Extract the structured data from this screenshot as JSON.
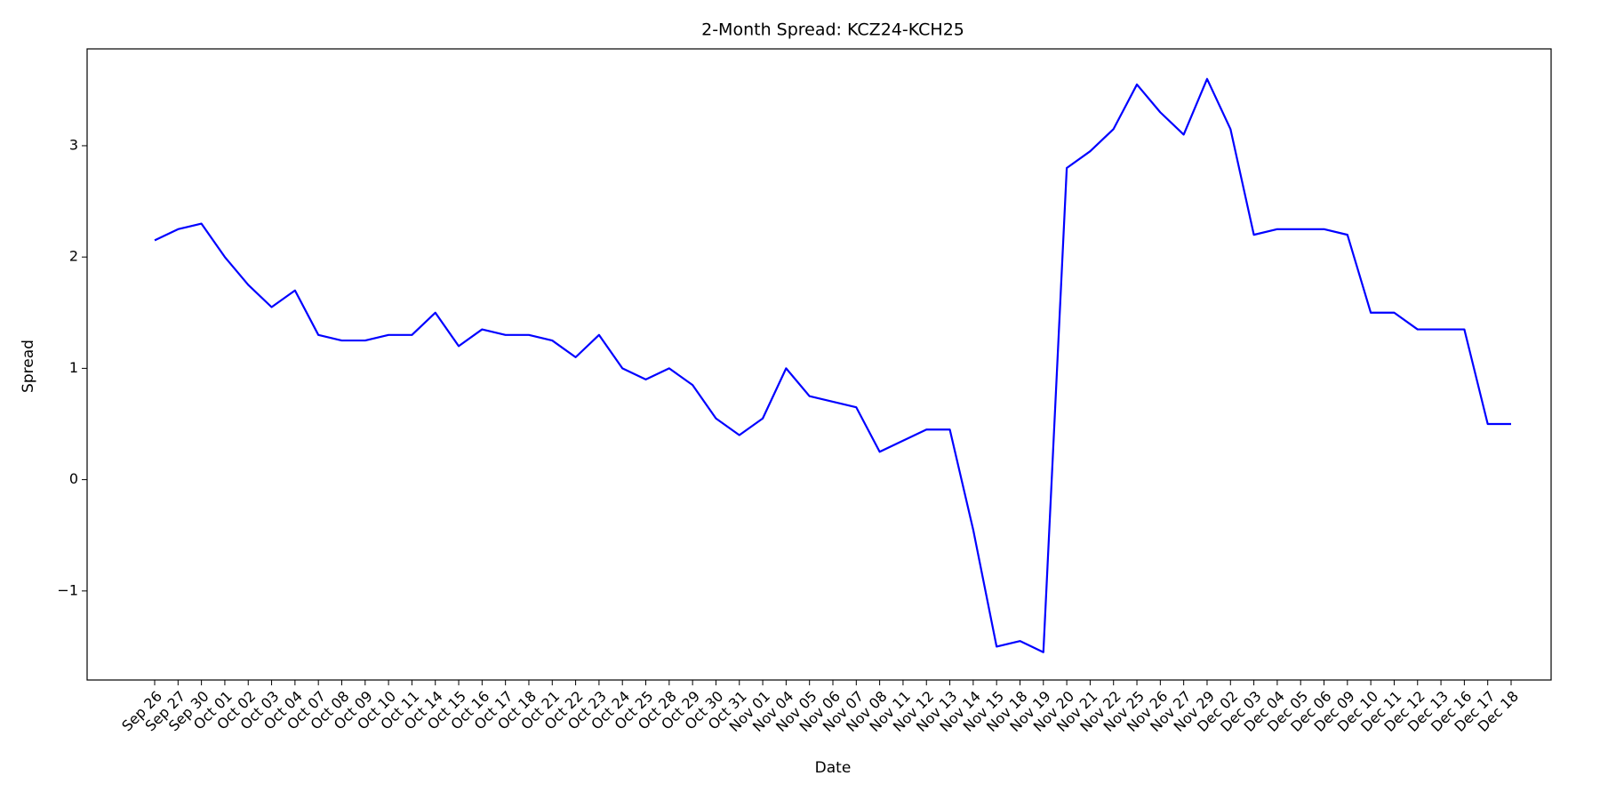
{
  "chart_data": {
    "type": "line",
    "title": "2-Month Spread: KCZ24-KCH25",
    "xlabel": "Date",
    "ylabel": "Spread",
    "categories": [
      "Sep 26",
      "Sep 27",
      "Sep 30",
      "Oct 01",
      "Oct 02",
      "Oct 03",
      "Oct 04",
      "Oct 07",
      "Oct 08",
      "Oct 09",
      "Oct 10",
      "Oct 11",
      "Oct 14",
      "Oct 15",
      "Oct 16",
      "Oct 17",
      "Oct 18",
      "Oct 21",
      "Oct 22",
      "Oct 23",
      "Oct 24",
      "Oct 25",
      "Oct 28",
      "Oct 29",
      "Oct 30",
      "Oct 31",
      "Nov 01",
      "Nov 04",
      "Nov 05",
      "Nov 06",
      "Nov 07",
      "Nov 08",
      "Nov 11",
      "Nov 12",
      "Nov 13",
      "Nov 14",
      "Nov 15",
      "Nov 18",
      "Nov 19",
      "Nov 20",
      "Nov 21",
      "Nov 22",
      "Nov 25",
      "Nov 26",
      "Nov 27",
      "Nov 29",
      "Dec 02",
      "Dec 03",
      "Dec 04",
      "Dec 05",
      "Dec 06",
      "Dec 09",
      "Dec 10",
      "Dec 11",
      "Dec 12",
      "Dec 13",
      "Dec 16",
      "Dec 17",
      "Dec 18"
    ],
    "values": [
      2.15,
      2.25,
      2.3,
      2.0,
      1.75,
      1.55,
      1.7,
      1.3,
      1.25,
      1.25,
      1.3,
      1.3,
      1.5,
      1.2,
      1.35,
      1.3,
      1.3,
      1.25,
      1.1,
      1.3,
      1.0,
      0.9,
      1.0,
      0.85,
      0.55,
      0.4,
      0.55,
      1.0,
      0.75,
      0.7,
      0.65,
      0.25,
      0.35,
      0.45,
      0.45,
      -0.45,
      -1.5,
      -1.45,
      -1.55,
      2.8,
      2.95,
      3.15,
      3.55,
      3.3,
      3.1,
      3.6,
      3.15,
      2.2,
      2.25,
      2.25,
      2.25,
      2.2,
      1.5,
      1.5,
      1.35,
      1.35,
      1.35,
      0.5,
      0.5
    ],
    "color": "#0000ff",
    "ylim": [
      -1.8,
      3.87
    ],
    "yticks": [
      {
        "value": -1,
        "label": "−1"
      },
      0,
      1,
      2,
      3
    ],
    "grid": false
  }
}
